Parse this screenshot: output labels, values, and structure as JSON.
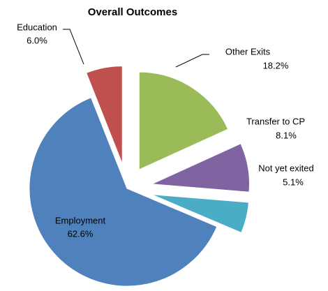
{
  "chart_data": {
    "type": "pie",
    "title": "Overall Outcomes",
    "categories": [
      "Other Exits",
      "Transfer to CP",
      "Not yet exited",
      "Employment",
      "Education"
    ],
    "values": [
      18.2,
      8.1,
      5.1,
      62.6,
      6.0
    ],
    "value_labels": [
      "18.2%",
      "8.1%",
      "5.1%",
      "62.6%",
      "6.0%"
    ],
    "colors": [
      "#9bbb59",
      "#8064a2",
      "#4bacc6",
      "#4f81bd",
      "#c0504d"
    ]
  }
}
